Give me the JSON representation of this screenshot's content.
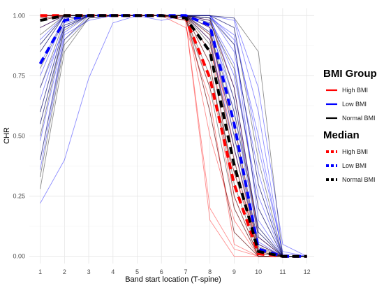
{
  "chart_data": {
    "type": "line",
    "xlabel": "Band start location (T-spine)",
    "ylabel": "CHR",
    "x": [
      1,
      2,
      3,
      4,
      5,
      6,
      7,
      8,
      9,
      10,
      11,
      12
    ],
    "xlim": [
      0.55,
      12.3
    ],
    "ylim": [
      -0.03,
      1.03
    ],
    "y_ticks": [
      "0.00",
      "0.25",
      "0.50",
      "0.75",
      "1.00"
    ],
    "grid": true,
    "legend_position": "right",
    "legends": [
      {
        "title": "BMI Group",
        "style": "solid",
        "entries": [
          {
            "label": "High BMI",
            "color": "#ff0000"
          },
          {
            "label": "Low BMI",
            "color": "#0000ff"
          },
          {
            "label": "Normal BMI",
            "color": "#000000"
          }
        ]
      },
      {
        "title": "Median",
        "style": "dashed",
        "entries": [
          {
            "label": "High BMI",
            "color": "#ff0000"
          },
          {
            "label": "Low BMI",
            "color": "#0000ff"
          },
          {
            "label": "Normal BMI",
            "color": "#000000"
          }
        ]
      }
    ],
    "median_series": [
      {
        "group": "High BMI",
        "color": "#ff0000",
        "values": [
          1.0,
          1.0,
          1.0,
          1.0,
          1.0,
          1.0,
          0.99,
          0.74,
          0.3,
          0.01,
          0.0,
          0.0
        ]
      },
      {
        "group": "Low BMI",
        "color": "#0000ff",
        "values": [
          0.8,
          0.98,
          1.0,
          1.0,
          1.0,
          1.0,
          1.0,
          0.96,
          0.55,
          0.03,
          0.0,
          0.0
        ]
      },
      {
        "group": "Normal BMI",
        "color": "#000000",
        "values": [
          0.98,
          1.0,
          1.0,
          1.0,
          1.0,
          1.0,
          0.99,
          0.85,
          0.38,
          0.02,
          0.0,
          0.0
        ]
      }
    ],
    "individual_series": {
      "High BMI": {
        "color": "#ff0000",
        "values": [
          [
            1.0,
            1.0,
            1.0,
            1.0,
            1.0,
            1.0,
            0.98,
            0.2,
            0.03,
            0.0,
            0.0,
            0.0
          ],
          [
            1.0,
            1.0,
            1.0,
            1.0,
            1.0,
            1.0,
            0.98,
            0.15,
            0.0,
            0.0,
            0.0,
            0.0
          ],
          [
            0.99,
            1.0,
            1.0,
            1.0,
            1.0,
            1.0,
            0.99,
            0.6,
            0.1,
            0.0,
            0.0,
            0.0
          ],
          [
            1.0,
            1.0,
            1.0,
            1.0,
            1.0,
            1.0,
            1.0,
            0.9,
            0.25,
            0.0,
            0.0,
            0.0
          ],
          [
            1.0,
            1.0,
            1.0,
            1.0,
            1.0,
            1.0,
            1.0,
            0.95,
            0.45,
            0.02,
            0.0,
            0.0
          ],
          [
            0.95,
            1.0,
            1.0,
            1.0,
            1.0,
            1.0,
            1.0,
            0.8,
            0.2,
            0.0,
            0.0,
            0.0
          ],
          [
            1.0,
            1.0,
            1.0,
            1.0,
            1.0,
            1.0,
            1.0,
            0.7,
            0.35,
            0.05,
            0.0,
            0.0
          ],
          [
            1.0,
            1.0,
            1.0,
            1.0,
            1.0,
            1.0,
            1.0,
            0.98,
            0.7,
            0.08,
            0.0,
            0.0
          ],
          [
            0.98,
            1.0,
            1.0,
            1.0,
            1.0,
            1.0,
            1.0,
            0.85,
            0.55,
            0.03,
            0.0,
            0.0
          ],
          [
            1.0,
            1.0,
            1.0,
            1.0,
            1.0,
            1.0,
            1.0,
            0.5,
            0.15,
            0.0,
            0.0,
            0.0
          ],
          [
            1.0,
            1.0,
            1.0,
            1.0,
            1.0,
            1.0,
            0.95,
            0.65,
            0.05,
            0.0,
            0.0,
            0.0
          ],
          [
            1.0,
            1.0,
            1.0,
            1.0,
            1.0,
            1.0,
            1.0,
            0.92,
            0.4,
            0.01,
            0.0,
            0.0
          ]
        ]
      },
      "Low BMI": {
        "color": "#0000ff",
        "values": [
          [
            0.22,
            0.4,
            0.74,
            0.97,
            1.0,
            1.0,
            1.0,
            1.0,
            0.9,
            0.15,
            0.0,
            0.0
          ],
          [
            0.4,
            0.92,
            0.98,
            1.0,
            1.0,
            0.98,
            1.0,
            1.0,
            0.7,
            0.1,
            0.0,
            0.0
          ],
          [
            0.55,
            0.95,
            1.0,
            1.0,
            1.0,
            1.0,
            1.0,
            1.0,
            0.98,
            0.6,
            0.0,
            0.0
          ],
          [
            0.65,
            0.97,
            1.0,
            1.0,
            1.0,
            1.0,
            1.0,
            1.0,
            0.95,
            0.45,
            0.02,
            0.0
          ],
          [
            0.7,
            0.95,
            1.0,
            1.0,
            1.0,
            1.0,
            1.0,
            1.0,
            0.88,
            0.3,
            0.0,
            0.0
          ],
          [
            0.75,
            0.99,
            1.0,
            1.0,
            1.0,
            1.0,
            1.0,
            0.97,
            0.6,
            0.08,
            0.0,
            0.0
          ],
          [
            0.85,
            1.0,
            1.0,
            1.0,
            1.0,
            1.0,
            1.0,
            0.9,
            0.45,
            0.05,
            0.0,
            0.0
          ],
          [
            0.9,
            1.0,
            1.0,
            1.0,
            1.0,
            1.0,
            1.0,
            1.0,
            0.99,
            0.7,
            0.05,
            0.0
          ],
          [
            0.6,
            0.96,
            1.0,
            1.0,
            1.0,
            1.0,
            1.0,
            0.98,
            0.8,
            0.2,
            0.0,
            0.0
          ],
          [
            0.48,
            0.93,
            1.0,
            1.0,
            1.0,
            1.0,
            1.0,
            0.99,
            0.92,
            0.5,
            0.01,
            0.0
          ],
          [
            0.95,
            1.0,
            1.0,
            1.0,
            1.0,
            1.0,
            1.0,
            0.95,
            0.65,
            0.12,
            0.0,
            0.0
          ],
          [
            0.8,
            0.99,
            1.0,
            1.0,
            1.0,
            1.0,
            1.0,
            1.0,
            0.85,
            0.35,
            0.0,
            0.0
          ],
          [
            0.36,
            0.9,
            0.99,
            1.0,
            1.0,
            1.0,
            1.0,
            0.99,
            0.75,
            0.25,
            0.0,
            0.0
          ],
          [
            0.88,
            1.0,
            1.0,
            1.0,
            1.0,
            1.0,
            1.0,
            0.93,
            0.5,
            0.06,
            0.0,
            0.0
          ]
        ]
      },
      "Normal BMI": {
        "color": "#000000",
        "values": [
          [
            1.0,
            1.0,
            1.0,
            1.0,
            1.0,
            1.0,
            1.0,
            1.0,
            0.99,
            0.85,
            0.0,
            0.0
          ],
          [
            0.28,
            0.85,
            0.99,
            1.0,
            1.0,
            1.0,
            1.0,
            0.95,
            0.5,
            0.03,
            0.0,
            0.0
          ],
          [
            0.5,
            0.95,
            1.0,
            1.0,
            1.0,
            1.0,
            1.0,
            0.9,
            0.4,
            0.02,
            0.0,
            0.0
          ],
          [
            0.7,
            0.98,
            1.0,
            1.0,
            1.0,
            1.0,
            0.98,
            0.7,
            0.2,
            0.0,
            0.0,
            0.0
          ],
          [
            0.85,
            1.0,
            1.0,
            1.0,
            1.0,
            1.0,
            1.0,
            0.98,
            0.7,
            0.1,
            0.0,
            0.0
          ],
          [
            0.92,
            1.0,
            1.0,
            1.0,
            1.0,
            1.0,
            1.0,
            0.85,
            0.3,
            0.01,
            0.0,
            0.0
          ],
          [
            0.6,
            0.96,
            1.0,
            1.0,
            1.0,
            1.0,
            1.0,
            0.99,
            0.88,
            0.3,
            0.0,
            0.0
          ],
          [
            0.95,
            1.0,
            1.0,
            1.0,
            1.0,
            1.0,
            1.0,
            0.6,
            0.1,
            0.0,
            0.0,
            0.0
          ],
          [
            0.99,
            1.0,
            1.0,
            1.0,
            1.0,
            1.0,
            1.0,
            0.92,
            0.55,
            0.05,
            0.0,
            0.0
          ],
          [
            0.4,
            0.9,
            1.0,
            1.0,
            1.0,
            1.0,
            1.0,
            0.97,
            0.78,
            0.2,
            0.0,
            0.0
          ],
          [
            0.78,
            0.99,
            1.0,
            1.0,
            1.0,
            1.0,
            1.0,
            0.8,
            0.25,
            0.0,
            0.0,
            0.0
          ],
          [
            0.98,
            1.0,
            1.0,
            1.0,
            1.0,
            1.0,
            1.0,
            0.99,
            0.65,
            0.08,
            0.0,
            0.0
          ],
          [
            0.55,
            0.94,
            1.0,
            1.0,
            1.0,
            1.0,
            1.0,
            0.88,
            0.45,
            0.04,
            0.0,
            0.0
          ],
          [
            0.88,
            1.0,
            1.0,
            1.0,
            1.0,
            1.0,
            0.99,
            0.75,
            0.35,
            0.02,
            0.0,
            0.0
          ],
          [
            1.0,
            1.0,
            1.0,
            1.0,
            1.0,
            1.0,
            1.0,
            1.0,
            0.95,
            0.4,
            0.0,
            0.0
          ],
          [
            0.33,
            0.88,
            0.99,
            1.0,
            1.0,
            1.0,
            1.0,
            0.93,
            0.6,
            0.12,
            0.0,
            0.0
          ]
        ]
      }
    }
  }
}
